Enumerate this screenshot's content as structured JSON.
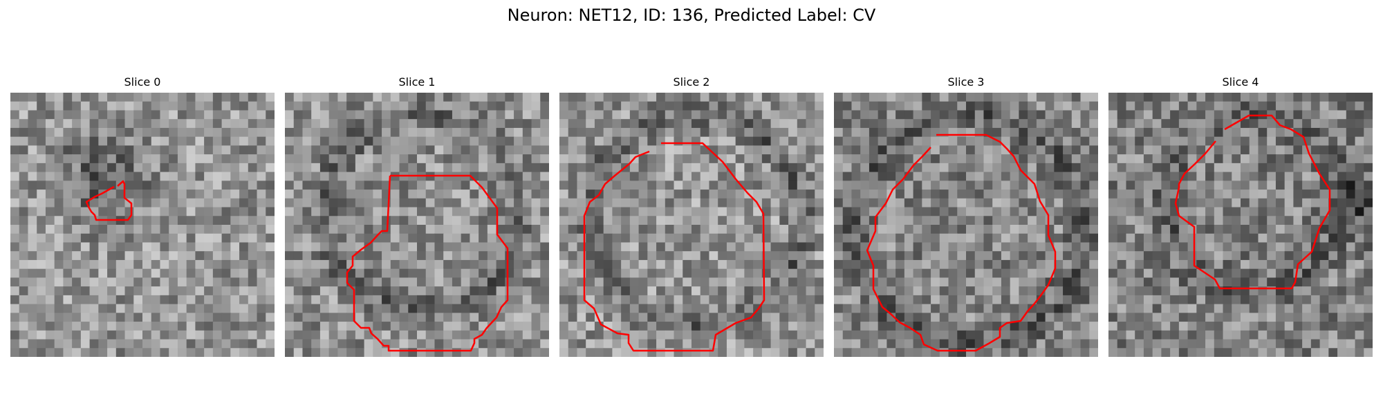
{
  "figure": {
    "title": "Neuron: NET12, ID: 136, Predicted Label: CV"
  },
  "colors": {
    "outline": "#ff0000",
    "background": "#ffffff",
    "image_colormap": "grayscale"
  },
  "panels": [
    {
      "title": "Slice 0"
    },
    {
      "title": "Slice 1"
    },
    {
      "title": "Slice 2"
    },
    {
      "title": "Slice 3"
    },
    {
      "title": "Slice 4"
    }
  ]
}
